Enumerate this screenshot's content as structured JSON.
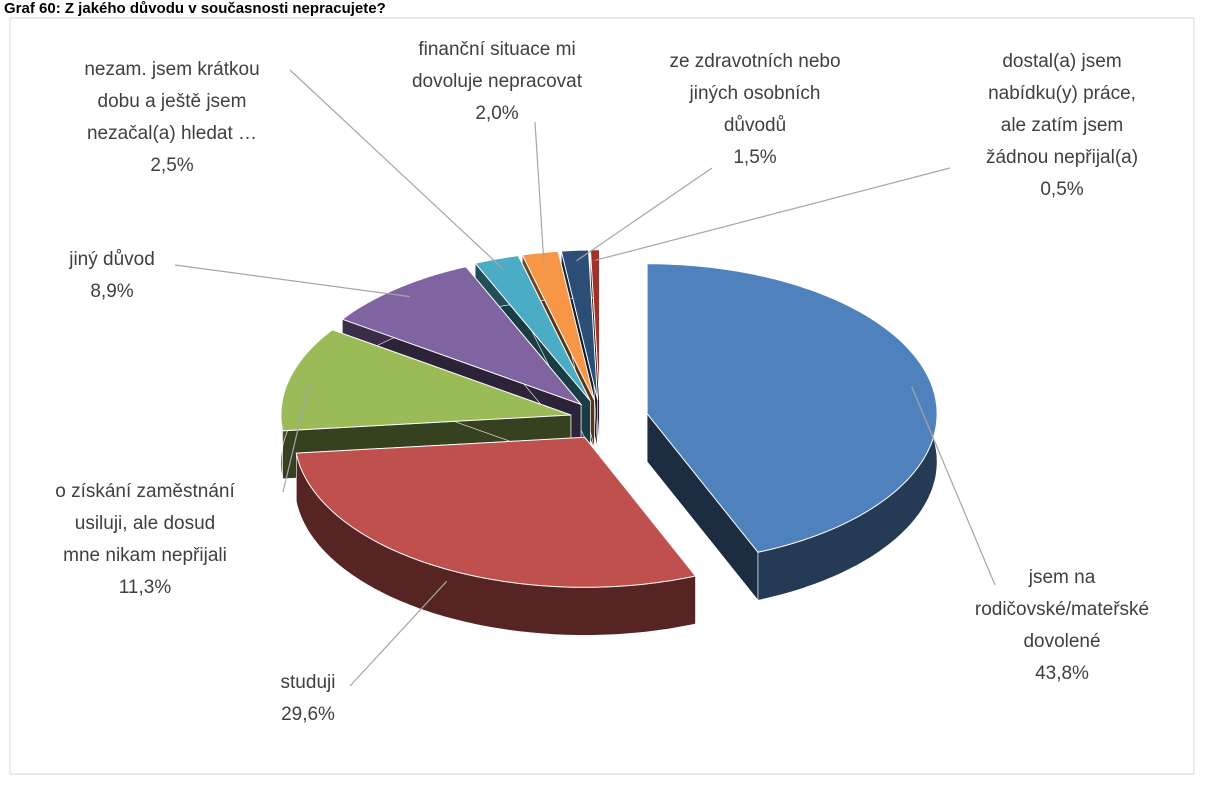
{
  "chart_data": {
    "type": "pie3d",
    "title": "Graf 60: Z jakého důvodu v současnosti nepracujete?",
    "categories": [
      [
        "jsem na",
        "rodičovské/mateřské",
        "dovolené"
      ],
      [
        "studuji"
      ],
      [
        "o získání zaměstnání",
        "usiluji, ale dosud",
        "mne nikam nepřijali"
      ],
      [
        "jiný důvod"
      ],
      [
        "nezam. jsem krátkou",
        "dobu a ještě jsem",
        "nezačal(a) hledat …"
      ],
      [
        "finanční situace mi",
        "dovoluje nepracovat"
      ],
      [
        "ze zdravotních nebo",
        "jiných osobních",
        "důvodů"
      ],
      [
        "dostal(a) jsem",
        "nabídku(y) práce,",
        "ale zatím jsem",
        "žádnou  nepřijal(a)"
      ]
    ],
    "values": [
      43.8,
      29.6,
      11.3,
      8.9,
      2.5,
      2.0,
      1.5,
      0.5
    ],
    "value_labels": [
      "43,8%",
      "29,6%",
      "11,3%",
      "8,9%",
      "2,5%",
      "2,0%",
      "1,5%",
      "0,5%"
    ],
    "colors": [
      "#4f81bd",
      "#c0504d",
      "#9bbb59",
      "#8064a2",
      "#4bacc6",
      "#f79646",
      "#2c4d75",
      "#a0322e"
    ]
  }
}
